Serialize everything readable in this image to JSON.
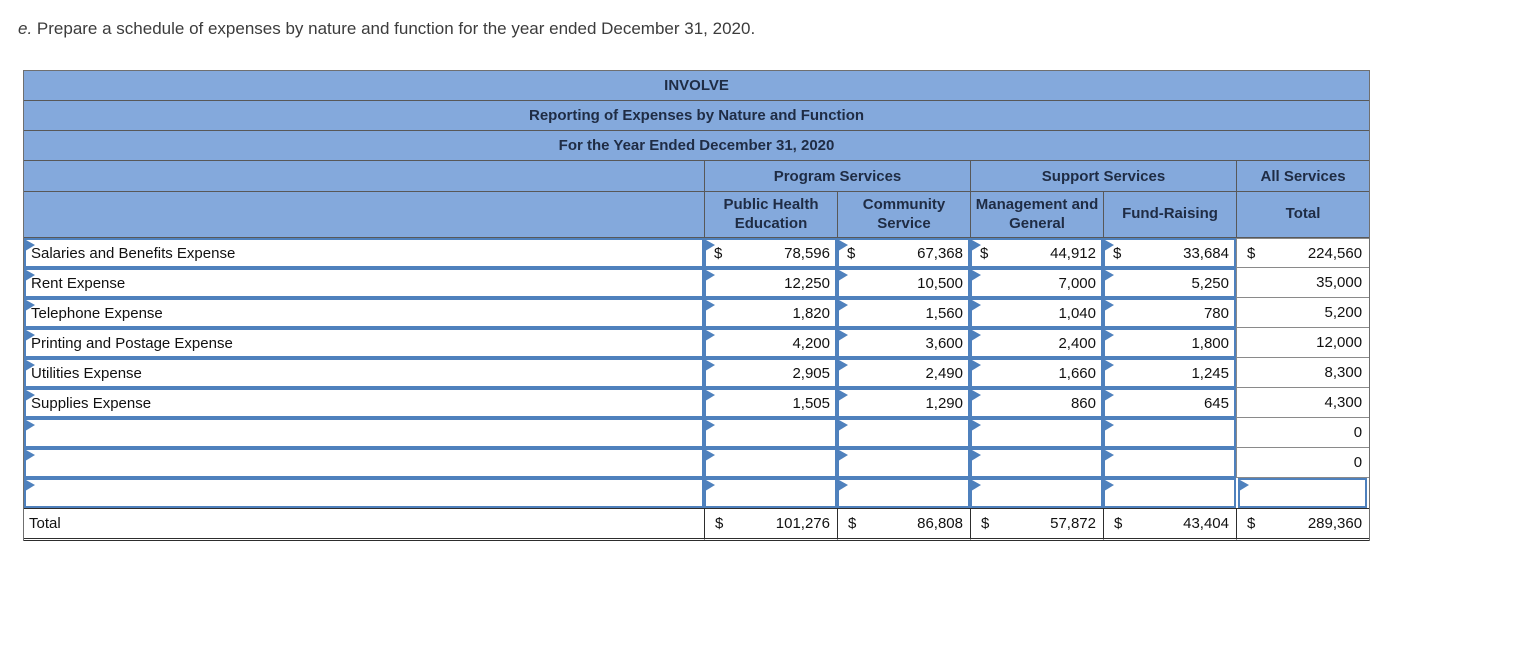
{
  "instruction": {
    "prefix": "e.",
    "text": " Prepare a schedule of expenses by nature and function for the year ended December 31, 2020."
  },
  "currency_symbol": "$",
  "table": {
    "title": "INVOLVE",
    "subtitle": "Reporting of Expenses by Nature and Function",
    "period": "For the Year Ended December 31, 2020",
    "groups": [
      {
        "label": "Program Services"
      },
      {
        "label": "Support Services"
      },
      {
        "label": "All Services"
      }
    ],
    "columns": [
      "Public Health Education",
      "Community Service",
      "Management and General",
      "Fund-Raising",
      "Total"
    ],
    "rows": [
      {
        "label": "Salaries and Benefits Expense",
        "show_dollar": true,
        "values": [
          "78,596",
          "67,368",
          "44,912",
          "33,684"
        ],
        "total": "224,560",
        "total_is_input": false
      },
      {
        "label": "Rent Expense",
        "show_dollar": false,
        "values": [
          "12,250",
          "10,500",
          "7,000",
          "5,250"
        ],
        "total": "35,000",
        "total_is_input": false
      },
      {
        "label": "Telephone Expense",
        "show_dollar": false,
        "values": [
          "1,820",
          "1,560",
          "1,040",
          "780"
        ],
        "total": "5,200",
        "total_is_input": false
      },
      {
        "label": "Printing and Postage Expense",
        "show_dollar": false,
        "values": [
          "4,200",
          "3,600",
          "2,400",
          "1,800"
        ],
        "total": "12,000",
        "total_is_input": false
      },
      {
        "label": "Utilities Expense",
        "show_dollar": false,
        "values": [
          "2,905",
          "2,490",
          "1,660",
          "1,245"
        ],
        "total": "8,300",
        "total_is_input": false
      },
      {
        "label": "Supplies Expense",
        "show_dollar": false,
        "values": [
          "1,505",
          "1,290",
          "860",
          "645"
        ],
        "total": "4,300",
        "total_is_input": false
      },
      {
        "label": "",
        "show_dollar": false,
        "values": [
          "",
          "",
          "",
          ""
        ],
        "total": "0",
        "total_is_input": false
      },
      {
        "label": "",
        "show_dollar": false,
        "values": [
          "",
          "",
          "",
          ""
        ],
        "total": "0",
        "total_is_input": false
      },
      {
        "label": "",
        "show_dollar": false,
        "values": [
          "",
          "",
          "",
          ""
        ],
        "total": "",
        "total_is_input": true
      }
    ],
    "total_row": {
      "label": "Total",
      "values": [
        "101,276",
        "86,808",
        "57,872",
        "43,404"
      ],
      "total": "289,360"
    },
    "colors": {
      "header_bg": "#84A9DC",
      "header_text": "#1F2C44",
      "input_border": "#4F81BD",
      "flag": "#4F81BD",
      "grid_dark": "#585858",
      "grid_gray": "#8A8A8A",
      "total_line": "#2D2D2D"
    }
  }
}
